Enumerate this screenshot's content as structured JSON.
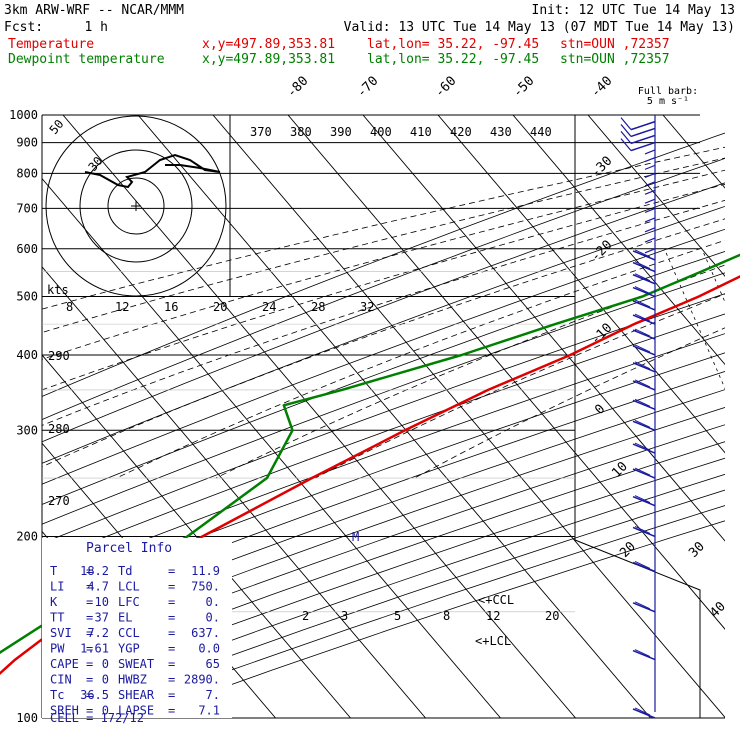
{
  "header": {
    "model": "3km ARW-WRF -- NCAR/MMM",
    "init": "Init: 12 UTC Tue 14 May 13",
    "fcst_label": "Fcst:",
    "fcst_value": "1 h",
    "valid": "Valid: 13 UTC Tue 14 May 13 (07 MDT Tue 14 May 13)",
    "temp_line": {
      "name": "Temperature",
      "xy": "x,y=497.89,353.81",
      "latlon": "lat,lon= 35.22, -97.45",
      "stn": "stn=OUN ,72357"
    },
    "dewp_line": {
      "name": "Dewpoint temperature",
      "xy": "x,y=497.89,353.81",
      "latlon": "lat,lon= 35.22, -97.45",
      "stn": "stn=OUN ,72357"
    },
    "barb_legend_1": "Full barb:",
    "barb_legend_2": "5 m s⁻¹"
  },
  "colors": {
    "temperature": "#e00000",
    "dewpoint": "#008000",
    "wind": "#1a1aa0",
    "frame": "#000000"
  },
  "chart_data": {
    "type": "line",
    "pressure_levels_hPa": [
      "100",
      "200",
      "300",
      "400",
      "500",
      "600",
      "700",
      "800",
      "900",
      "1000"
    ],
    "temp_axis_labels": [
      "-80",
      "-70",
      "-60",
      "-50",
      "-40",
      "-30",
      "-20",
      "-10",
      "0",
      "10",
      "20",
      "30",
      "40"
    ],
    "theta_labels": [
      "370",
      "380",
      "390",
      "400",
      "410",
      "420",
      "430",
      "440"
    ],
    "theta_low_labels": [
      "290",
      "280",
      "270"
    ],
    "mixing_ratio_labels": [
      "2",
      "3",
      "5",
      "8",
      "12",
      "20"
    ],
    "hodograph": {
      "speed_label": "kts",
      "ring_labels": [
        "50",
        "30"
      ],
      "speed_axis": [
        "8",
        "12",
        "16",
        "20",
        "24",
        "28",
        "32"
      ]
    },
    "series": [
      {
        "name": "Temperature",
        "pressure": [
          1000,
          975,
          950,
          925,
          900,
          875,
          850,
          800,
          750,
          700,
          650,
          600,
          550,
          500,
          450,
          400,
          350,
          300,
          250,
          200,
          175,
          150,
          125,
          100
        ],
        "temperature_C": [
          18.2,
          22.5,
          23.5,
          22.0,
          18.5,
          16.0,
          13.8,
          10.0,
          6.8,
          3.2,
          -0.5,
          -4.5,
          -9.0,
          -13.0,
          -18.5,
          -23.5,
          -30.5,
          -37.0,
          -44.0,
          -52.0,
          -56.5,
          -60.0,
          -63.0,
          -65.0
        ]
      },
      {
        "name": "Dewpoint temperature",
        "pressure": [
          1000,
          975,
          950,
          925,
          900,
          850,
          800,
          750,
          700,
          650,
          600,
          550,
          500,
          450,
          400,
          350,
          330,
          300,
          250,
          200,
          150,
          100
        ],
        "temperature_C": [
          11.9,
          7.5,
          1.5,
          -4.5,
          -8.5,
          -10.5,
          -10.0,
          -9.5,
          -9.0,
          -8.5,
          -11.0,
          -15.5,
          -20.5,
          -29.0,
          -38.0,
          -50.0,
          -56.0,
          -52.0,
          -50.0,
          -54.0,
          -62.0,
          -72.0
        ]
      }
    ],
    "annotations": [
      "CCL",
      "LCL",
      "M"
    ]
  },
  "parcel_info": {
    "title": "Parcel Info",
    "rows": [
      {
        "k1": "T",
        "v1": "18.2",
        "k2": "Td",
        "v2": "11.9"
      },
      {
        "k1": "LI",
        "v1": "4.7",
        "k2": "LCL",
        "v2": "750."
      },
      {
        "k1": "K",
        "v1": "10",
        "k2": "LFC",
        "v2": "0."
      },
      {
        "k1": "TT",
        "v1": "37",
        "k2": "EL",
        "v2": "0."
      },
      {
        "k1": "SVI",
        "v1": "7.2",
        "k2": "CCL",
        "v2": "637."
      },
      {
        "k1": "PW",
        "v1": "1.61",
        "k2": "YGP",
        "v2": "0.0"
      },
      {
        "k1": "CAPE",
        "v1": "0",
        "k2": "SWEAT",
        "v2": "65"
      },
      {
        "k1": "CIN",
        "v1": "0",
        "k2": "HWBZ",
        "v2": "2890."
      },
      {
        "k1": "Tc",
        "v1": "36.5",
        "k2": "SHEAR",
        "v2": "7."
      },
      {
        "k1": "SREH",
        "v1": "0",
        "k2": "LAPSE",
        "v2": "7.1"
      }
    ],
    "cell": "CELL = 172/12"
  }
}
